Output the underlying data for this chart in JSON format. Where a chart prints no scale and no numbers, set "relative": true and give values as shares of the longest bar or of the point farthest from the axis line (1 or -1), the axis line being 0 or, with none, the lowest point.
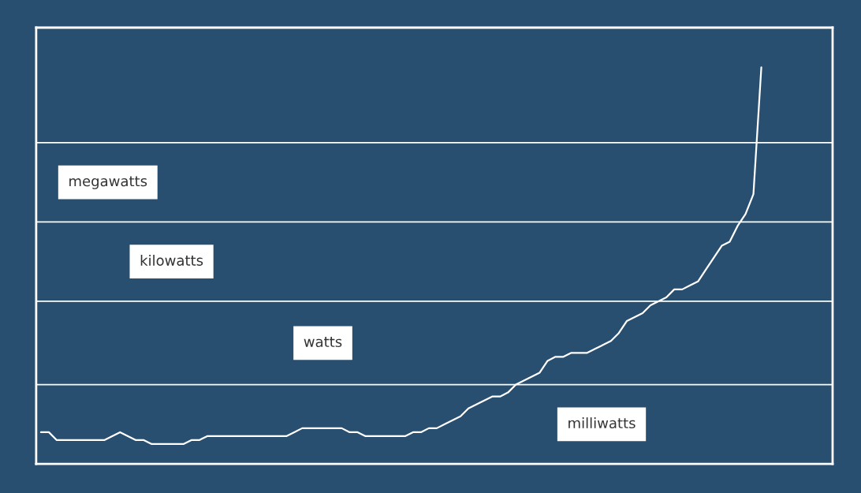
{
  "chart_data": {
    "type": "line",
    "relative": true,
    "categories": [
      null,
      null,
      null,
      null,
      null,
      null,
      null,
      null,
      null,
      null,
      null,
      null,
      null,
      null,
      null,
      null,
      null,
      null,
      null,
      null,
      null,
      null,
      null,
      null,
      null,
      null,
      null,
      null,
      null,
      null,
      null,
      null,
      null,
      null,
      null,
      null,
      null,
      null,
      null,
      null,
      null,
      null,
      null,
      null,
      null,
      null,
      null,
      null,
      null,
      null,
      null,
      null,
      null,
      null,
      null,
      null,
      null,
      null,
      null,
      null,
      null,
      null,
      null,
      null,
      null,
      null,
      null,
      null,
      null,
      null,
      null,
      null,
      null,
      null,
      null,
      null,
      null,
      null,
      null,
      null,
      null,
      null,
      null,
      null,
      null,
      null,
      null,
      null,
      null,
      null,
      null,
      null
    ],
    "series": [
      {
        "color": "#ffffff",
        "values": [
          0.08,
          0.08,
          0.06,
          0.06,
          0.06,
          0.06,
          0.06,
          0.06,
          0.06,
          0.07,
          0.08,
          0.07,
          0.06,
          0.06,
          0.05,
          0.05,
          0.05,
          0.05,
          0.05,
          0.06,
          0.06,
          0.07,
          0.07,
          0.07,
          0.07,
          0.07,
          0.07,
          0.07,
          0.07,
          0.07,
          0.07,
          0.07,
          0.08,
          0.09,
          0.09,
          0.09,
          0.09,
          0.09,
          0.09,
          0.08,
          0.08,
          0.07,
          0.07,
          0.07,
          0.07,
          0.07,
          0.07,
          0.08,
          0.08,
          0.09,
          0.09,
          0.1,
          0.11,
          0.12,
          0.14,
          0.15,
          0.16,
          0.17,
          0.17,
          0.18,
          0.2,
          0.21,
          0.22,
          0.23,
          0.26,
          0.27,
          0.27,
          0.28,
          0.28,
          0.28,
          0.29,
          0.3,
          0.31,
          0.33,
          0.36,
          0.37,
          0.38,
          0.4,
          0.41,
          0.42,
          0.44,
          0.44,
          0.45,
          0.46,
          0.49,
          0.52,
          0.55,
          0.56,
          0.6,
          0.63,
          0.68,
          1
        ]
      }
    ],
    "ref_lines": [
      {
        "axis": "y",
        "value": 0.2,
        "color": "#ffffff"
      },
      {
        "axis": "y",
        "value": 0.41,
        "color": "#ffffff"
      },
      {
        "axis": "y",
        "value": 0.61,
        "color": "#ffffff"
      },
      {
        "axis": "y",
        "value": 0.81,
        "color": "#ffffff"
      }
    ],
    "annotations": [
      "milliwatts",
      "watts",
      "kilowatts",
      "megawatts"
    ]
  }
}
